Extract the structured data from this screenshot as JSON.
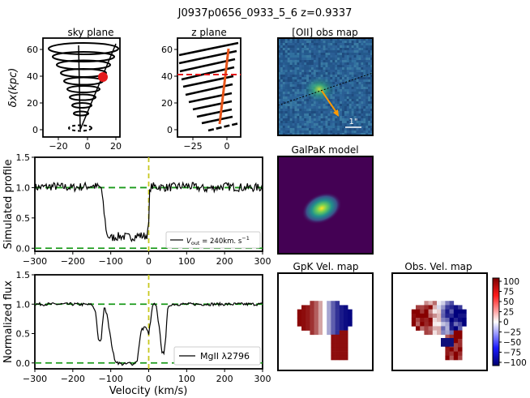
{
  "title": "J0937p0656_0933_5_6 z=0.9337",
  "sky_plane": {
    "title": "sky plane",
    "ylabel": "δx(kpc)",
    "xticks": [
      "−20",
      "0",
      "20"
    ],
    "yticks": [
      "0",
      "20",
      "40",
      "60"
    ]
  },
  "z_plane": {
    "title": "z plane",
    "xticks": [
      "−25",
      "0"
    ],
    "yticks": [
      "0",
      "20",
      "40",
      "60"
    ]
  },
  "oii_map": {
    "title": "[OII] obs map",
    "scale_label": "1\""
  },
  "galpak_model": {
    "title": "GalPaK model"
  },
  "gpk_vel_map": {
    "title": "GpK Vel. map"
  },
  "obs_vel_map": {
    "title": "Obs. Vel. map"
  },
  "colorbar": {
    "ticks": [
      "100",
      "75",
      "50",
      "25",
      "0",
      "−25",
      "−50",
      "−75",
      "−100"
    ],
    "colors": [
      "#0a0a90",
      "#4040ff",
      "#ffffff",
      "#ff4040",
      "#8a0000"
    ]
  },
  "chart_data": [
    {
      "name": "simulated_profile",
      "type": "line",
      "ylabel": "Simulated profile",
      "xlim": [
        -300,
        300
      ],
      "ylim": [
        -0.05,
        1.5
      ],
      "xticks": [
        "−300",
        "−200",
        "−100",
        "0",
        "100",
        "200",
        "300"
      ],
      "yticks": [
        "0.0",
        "0.5",
        "1.0",
        "1.5"
      ],
      "legend": "V_out = 240km.s⁻¹",
      "legend_pre": "V",
      "legend_sub": "out",
      "legend_post": " = 240km. s",
      "legend_sup": "−1",
      "legend_position": "lower right",
      "reference_lines": {
        "continuum": 1.0,
        "zero": 0.0,
        "velocity_zero": 0
      },
      "x": [
        -300,
        -250,
        -200,
        -150,
        -125,
        -118,
        -110,
        -100,
        -75,
        -50,
        -25,
        -10,
        -3,
        0,
        3,
        10,
        50,
        100,
        150,
        200,
        250,
        300
      ],
      "y": [
        1.0,
        1.02,
        1.0,
        1.03,
        1.0,
        0.6,
        0.22,
        0.17,
        0.2,
        0.18,
        0.21,
        0.2,
        0.23,
        0.4,
        1.0,
        1.02,
        1.0,
        1.03,
        0.98,
        1.02,
        1.0,
        1.0
      ]
    },
    {
      "name": "normalized_flux",
      "type": "line",
      "ylabel": "Normalized flux",
      "xlabel": "Velocity (km/s)",
      "xlim": [
        -300,
        300
      ],
      "ylim": [
        -0.1,
        1.5
      ],
      "xticks": [
        "−300",
        "−200",
        "−100",
        "0",
        "100",
        "200",
        "300"
      ],
      "yticks": [
        "0.0",
        "0.5",
        "1.0",
        "1.5"
      ],
      "legend": "MgII λ2796",
      "legend_position": "lower right",
      "reference_lines": {
        "continuum": 1.0,
        "zero": 0.0,
        "velocity_zero": 0
      },
      "x": [
        -300,
        -250,
        -200,
        -150,
        -140,
        -132,
        -125,
        -118,
        -110,
        -100,
        -90,
        -80,
        -70,
        -60,
        -50,
        -40,
        -30,
        -25,
        -20,
        -10,
        0,
        5,
        10,
        15,
        20,
        30,
        35,
        40,
        45,
        50,
        55,
        60,
        70,
        100,
        150,
        200,
        250,
        300
      ],
      "y": [
        1.0,
        1.0,
        1.0,
        0.99,
        0.88,
        0.35,
        0.4,
        0.95,
        0.85,
        0.4,
        0.05,
        0.0,
        -0.02,
        -0.02,
        0.0,
        -0.02,
        0.05,
        0.3,
        0.55,
        0.62,
        0.5,
        0.7,
        0.97,
        1.0,
        0.95,
        0.5,
        0.15,
        0.18,
        0.45,
        0.9,
        0.98,
        1.0,
        1.0,
        1.0,
        1.0,
        1.0,
        1.0,
        1.0
      ]
    }
  ]
}
